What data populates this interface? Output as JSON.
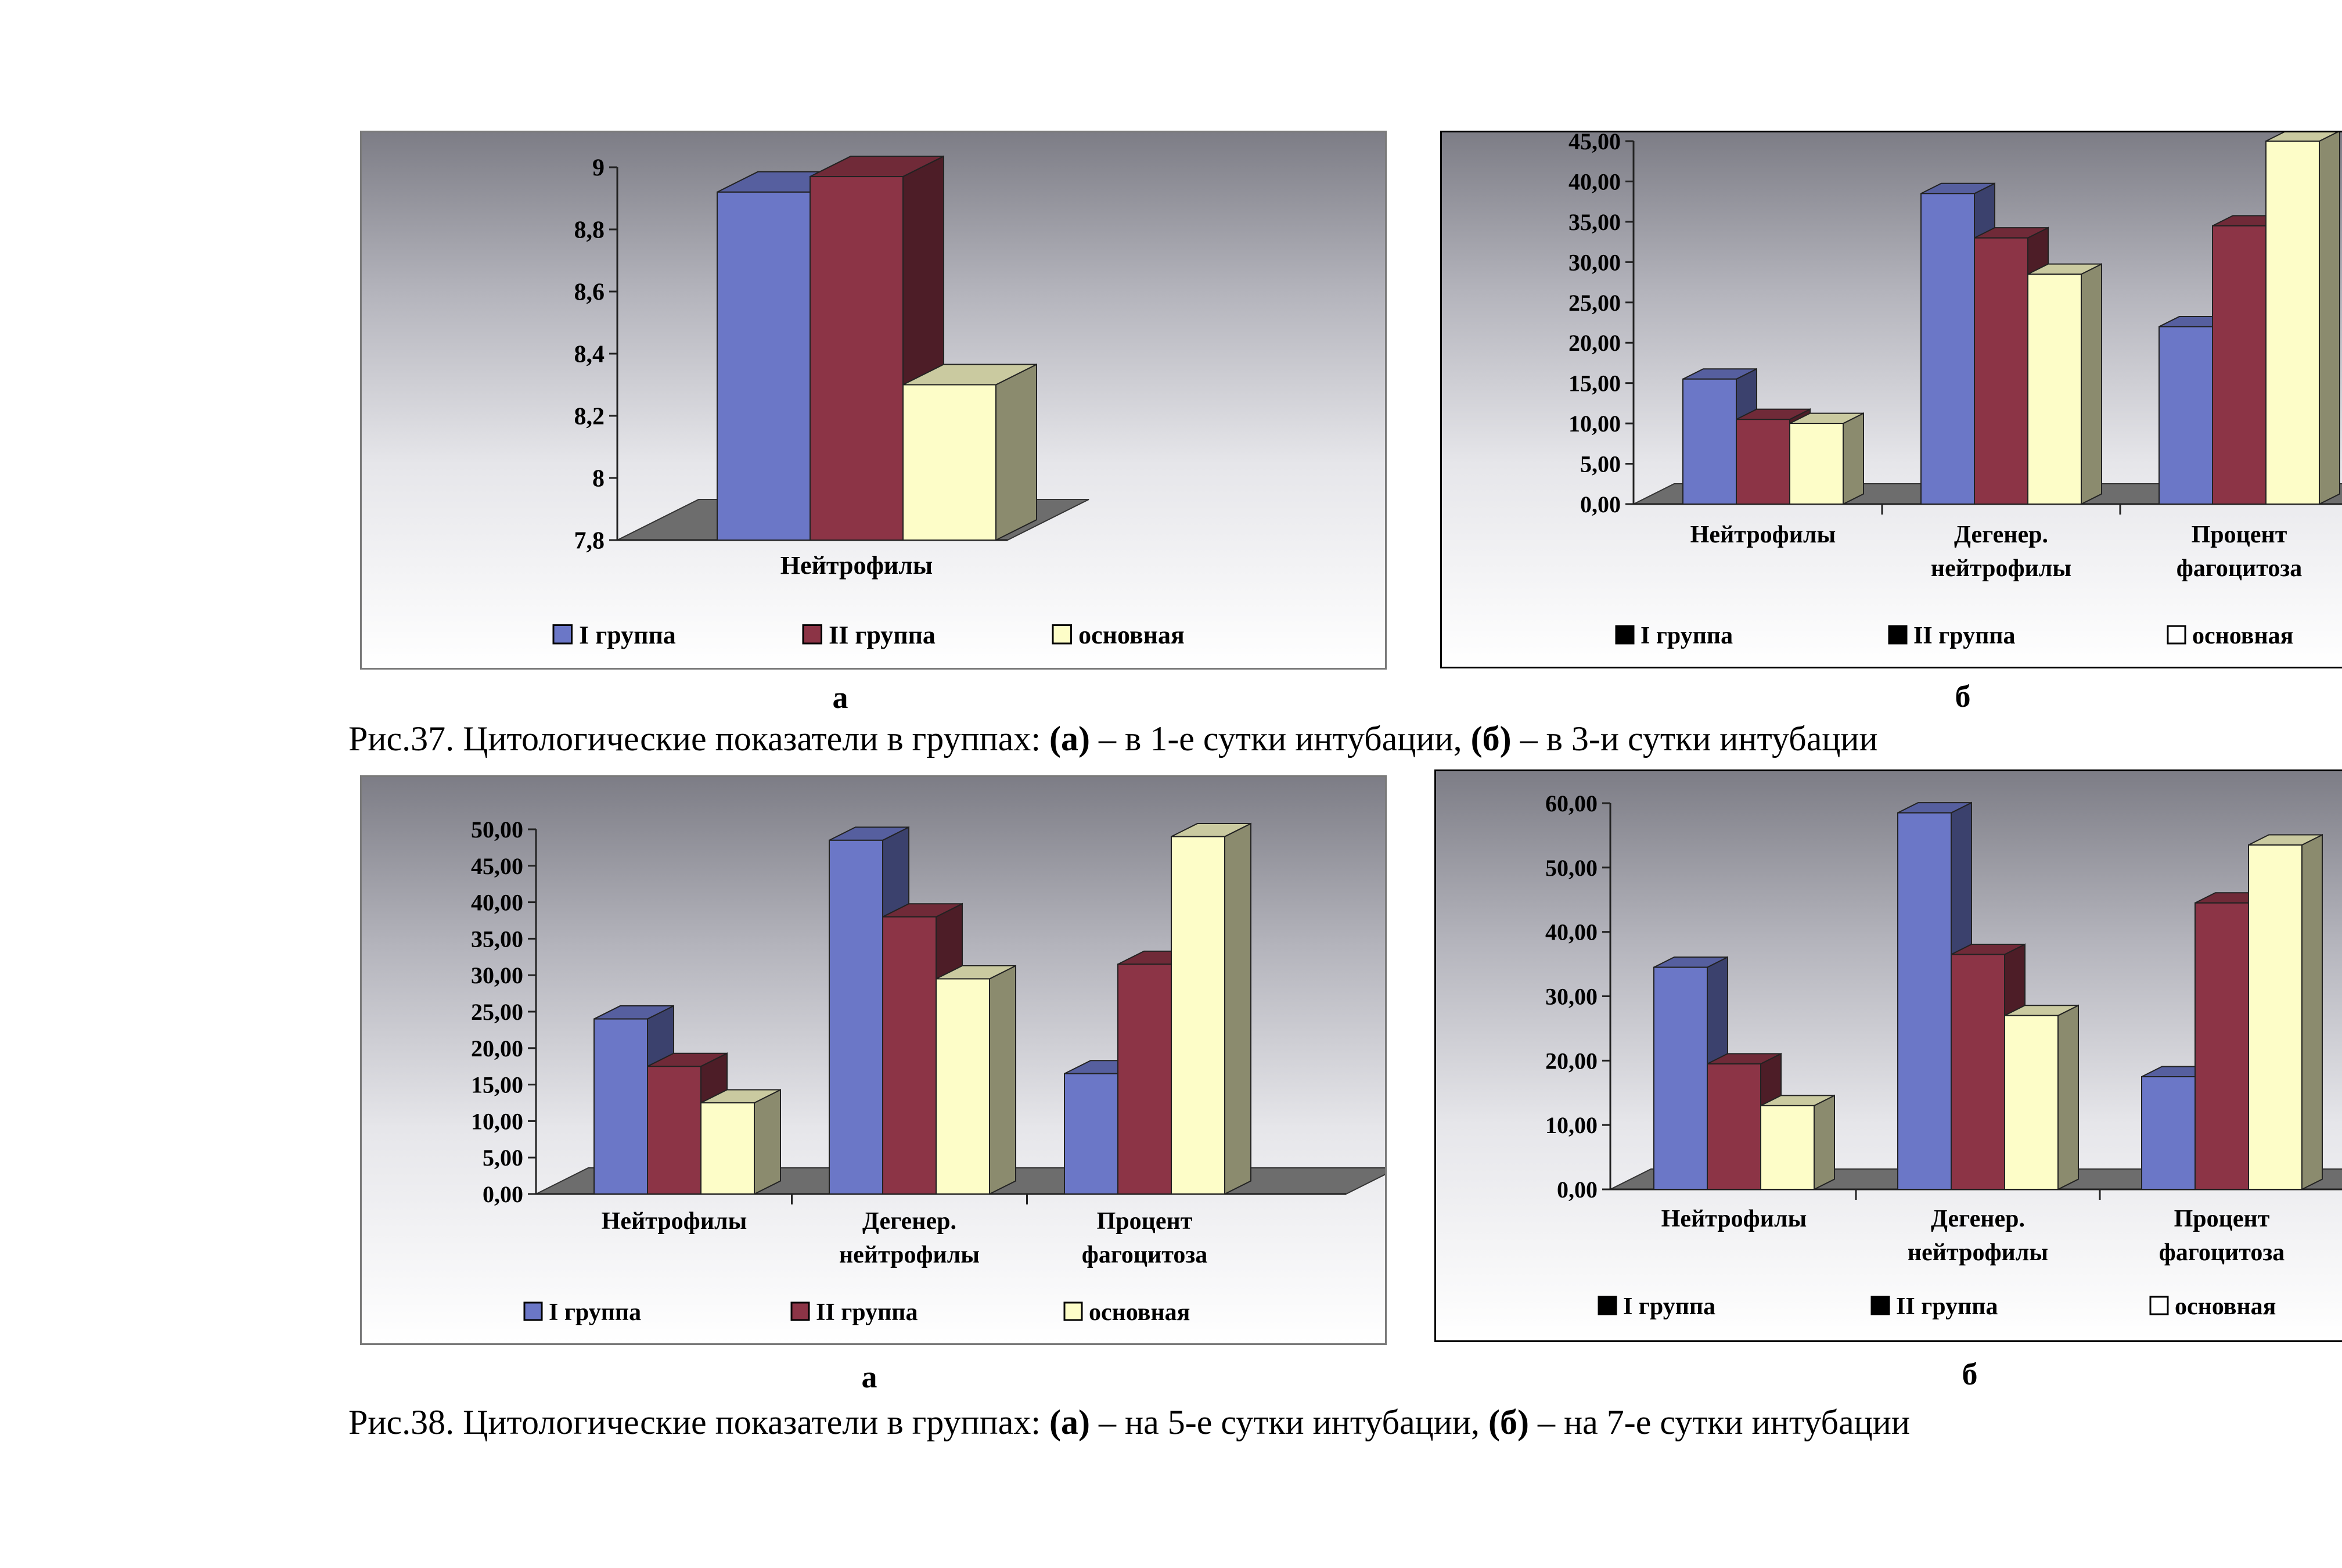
{
  "colors": {
    "group1": "#6b77c7",
    "group2": "#8c3446",
    "main": "#fdfdc8",
    "floor": "#6d6d6d"
  },
  "figure37": {
    "caption": {
      "prefix": "Рис.37. Цитологические показатели в группах: ",
      "a_label": "(а)",
      "a_text": " – в 1-е сутки интубации, ",
      "b_label": "(б)",
      "b_text": " – в 3-и сутки интубации"
    },
    "sub_a": "а",
    "sub_b": "б"
  },
  "figure38": {
    "caption": {
      "prefix": "Рис.38. Цитологические показатели в группах: ",
      "a_label": "(а)",
      "a_text": " – на 5-е сутки интубации, ",
      "b_label": "(б)",
      "b_text": " – на 7-е сутки интубации"
    },
    "sub_a": "а",
    "sub_b": "б"
  },
  "chart_data": [
    {
      "id": "fig37a",
      "type": "bar",
      "categories": [
        [
          "Нейтрофилы"
        ]
      ],
      "series": [
        {
          "name": "I группа",
          "values": [
            8.92
          ]
        },
        {
          "name": "II группа",
          "values": [
            8.97
          ]
        },
        {
          "name": "основная",
          "values": [
            8.3
          ]
        }
      ],
      "yticks": [
        "9",
        "8,8",
        "8,6",
        "8,4",
        "8,2",
        "8",
        "7,8"
      ],
      "ylim": [
        7.8,
        9.0
      ],
      "legend": [
        "I группа",
        "II группа",
        "основная"
      ],
      "legend_position": "bottom",
      "legend_style": "color"
    },
    {
      "id": "fig37b",
      "type": "bar",
      "categories": [
        [
          "Нейтрофилы"
        ],
        [
          "Дегенер.",
          "нейтрофилы"
        ],
        [
          "Процент",
          "фагоцитоза"
        ]
      ],
      "series": [
        {
          "name": "I группа",
          "values": [
            15.5,
            38.5,
            22.0
          ]
        },
        {
          "name": "II группа",
          "values": [
            10.5,
            33.0,
            34.5
          ]
        },
        {
          "name": "основная",
          "values": [
            10.0,
            28.5,
            45.0
          ]
        }
      ],
      "yticks": [
        "45,00",
        "40,00",
        "35,00",
        "30,00",
        "25,00",
        "20,00",
        "15,00",
        "10,00",
        "5,00",
        "0,00"
      ],
      "ylim": [
        0,
        45
      ],
      "legend": [
        "I группа",
        "II группа",
        "основная"
      ],
      "legend_position": "bottom",
      "legend_style": "mono"
    },
    {
      "id": "fig38a",
      "type": "bar",
      "categories": [
        [
          "Нейтрофилы"
        ],
        [
          "Дегенер.",
          "нейтрофилы"
        ],
        [
          "Процент",
          "фагоцитоза"
        ]
      ],
      "series": [
        {
          "name": "I группа",
          "values": [
            24.0,
            48.5,
            16.5
          ]
        },
        {
          "name": "II группа",
          "values": [
            17.5,
            38.0,
            31.5
          ]
        },
        {
          "name": "основная",
          "values": [
            12.5,
            29.5,
            49.0
          ]
        }
      ],
      "yticks": [
        "50,00",
        "45,00",
        "40,00",
        "35,00",
        "30,00",
        "25,00",
        "20,00",
        "15,00",
        "10,00",
        "5,00",
        "0,00"
      ],
      "ylim": [
        0,
        50
      ],
      "legend": [
        "I группа",
        "II группа",
        "основная"
      ],
      "legend_position": "bottom",
      "legend_style": "color"
    },
    {
      "id": "fig38b",
      "type": "bar",
      "categories": [
        [
          "Нейтрофилы"
        ],
        [
          "Дегенер.",
          "нейтрофилы"
        ],
        [
          "Процент",
          "фагоцитоза"
        ]
      ],
      "series": [
        {
          "name": "I группа",
          "values": [
            34.5,
            58.5,
            17.5
          ]
        },
        {
          "name": "II группа",
          "values": [
            19.5,
            36.5,
            44.5
          ]
        },
        {
          "name": "основная",
          "values": [
            13.0,
            27.0,
            53.5
          ]
        }
      ],
      "yticks": [
        "60,00",
        "50,00",
        "40,00",
        "30,00",
        "20,00",
        "10,00",
        "0,00"
      ],
      "ylim": [
        0,
        60
      ],
      "legend": [
        "I группа",
        "II группа",
        "основная"
      ],
      "legend_position": "bottom",
      "legend_style": "mono"
    }
  ]
}
